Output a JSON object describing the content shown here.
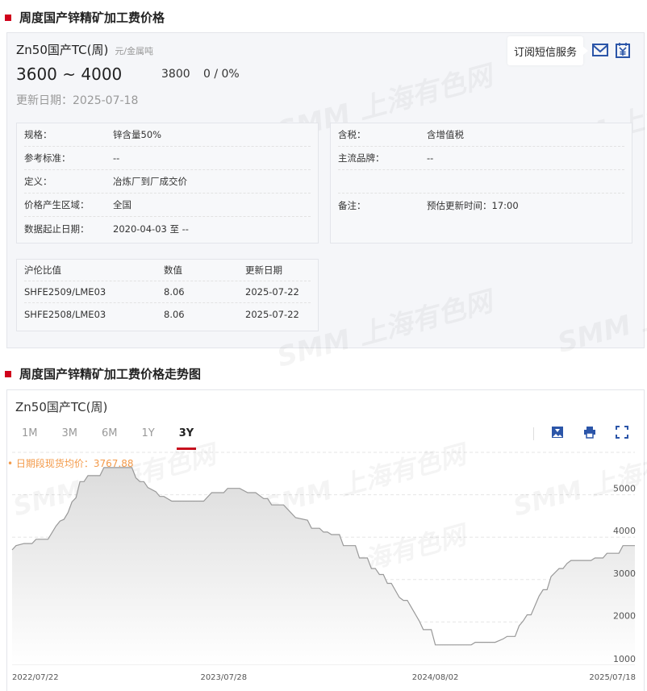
{
  "section1": {
    "title": "周度国产锌精矿加工费价格"
  },
  "product": {
    "name": "Zn50国产TC(周)",
    "unit": "元/金属吨",
    "range": "3600 ~ 4000",
    "average": "3800",
    "change": "0 / 0%",
    "update_date": "更新日期：2025-07-18",
    "subscribe_label": "订阅短信服务",
    "icons": [
      "mail-icon",
      "calendar-yuan-icon"
    ],
    "accent": "#2b55a8"
  },
  "specs_left": [
    {
      "k": "规格：",
      "v": "锌含量50%"
    },
    {
      "k": "参考标准：",
      "v": "--"
    },
    {
      "k": "定义：",
      "v": "冶炼厂到厂成交价"
    },
    {
      "k": "价格产生区域：",
      "v": "全国"
    },
    {
      "k": "数据起止日期：",
      "v": "2020-04-03 至 --"
    }
  ],
  "specs_right": [
    {
      "k": "含税：",
      "v": "含增值税"
    },
    {
      "k": "主流品牌：",
      "v": "--"
    },
    {
      "k": "备注：",
      "v": "预估更新时间：17:00"
    }
  ],
  "ratio_table": {
    "headers": [
      "沪伦比值",
      "数值",
      "更新日期"
    ],
    "rows": [
      [
        "SHFE2509/LME03",
        "8.06",
        "2025-07-22"
      ],
      [
        "SHFE2508/LME03",
        "8.06",
        "2025-07-22"
      ]
    ]
  },
  "section2": {
    "title": "周度国产锌精矿加工费价格走势图"
  },
  "chart_panel": {
    "title": "Zn50国产TC(周)",
    "tabs": [
      "1M",
      "3M",
      "6M",
      "1Y",
      "3Y"
    ],
    "active_tab": "3Y",
    "toolbar_icons": [
      "download-image-icon",
      "print-icon",
      "fullscreen-icon"
    ],
    "avg_label": "• 日期段现货均价：3767.88",
    "watermark": "SMM 上海有色网"
  },
  "chart_data": {
    "type": "area",
    "x_ticks": [
      "2022/07/22",
      "2023/07/28",
      "2024/08/02",
      "2025/07/18"
    ],
    "y_ticks": [
      1000,
      2000,
      3000,
      4000,
      5000
    ],
    "ylim": [
      1000,
      6000
    ],
    "xlim": [
      "2022-07-22",
      "2025-07-18"
    ],
    "grid": "horizontal dashed",
    "line_color": "#999999",
    "points": [
      [
        "2022-07-22",
        3700
      ],
      [
        "2022-07-29",
        3800
      ],
      [
        "2022-08-12",
        3850
      ],
      [
        "2022-08-26",
        3850
      ],
      [
        "2022-09-02",
        3950
      ],
      [
        "2022-09-23",
        3950
      ],
      [
        "2022-10-07",
        4260
      ],
      [
        "2022-10-14",
        4380
      ],
      [
        "2022-10-21",
        4420
      ],
      [
        "2022-10-28",
        4580
      ],
      [
        "2022-11-04",
        4830
      ],
      [
        "2022-11-11",
        4930
      ],
      [
        "2022-11-18",
        5310
      ],
      [
        "2022-11-25",
        5310
      ],
      [
        "2022-12-02",
        5450
      ],
      [
        "2022-12-23",
        5450
      ],
      [
        "2022-12-30",
        5640
      ],
      [
        "2023-02-17",
        5640
      ],
      [
        "2023-02-24",
        5400
      ],
      [
        "2023-03-03",
        5310
      ],
      [
        "2023-03-10",
        5310
      ],
      [
        "2023-03-17",
        5170
      ],
      [
        "2023-03-31",
        5070
      ],
      [
        "2023-04-07",
        4960
      ],
      [
        "2023-04-14",
        4960
      ],
      [
        "2023-04-28",
        4850
      ],
      [
        "2023-06-23",
        4850
      ],
      [
        "2023-07-07",
        5050
      ],
      [
        "2023-07-28",
        5050
      ],
      [
        "2023-08-04",
        5150
      ],
      [
        "2023-08-25",
        5150
      ],
      [
        "2023-09-08",
        5050
      ],
      [
        "2023-09-22",
        5050
      ],
      [
        "2023-10-06",
        4910
      ],
      [
        "2023-10-13",
        4910
      ],
      [
        "2023-10-20",
        4760
      ],
      [
        "2023-11-10",
        4760
      ],
      [
        "2023-12-01",
        4460
      ],
      [
        "2023-12-22",
        4400
      ],
      [
        "2023-12-29",
        4210
      ],
      [
        "2024-01-12",
        4210
      ],
      [
        "2024-01-19",
        4120
      ],
      [
        "2024-01-26",
        4120
      ],
      [
        "2024-02-02",
        4060
      ],
      [
        "2024-02-16",
        4060
      ],
      [
        "2024-02-23",
        3800
      ],
      [
        "2024-03-15",
        3800
      ],
      [
        "2024-03-22",
        3510
      ],
      [
        "2024-04-05",
        3510
      ],
      [
        "2024-04-12",
        3260
      ],
      [
        "2024-04-19",
        3260
      ],
      [
        "2024-04-26",
        3120
      ],
      [
        "2024-05-03",
        3120
      ],
      [
        "2024-05-10",
        2910
      ],
      [
        "2024-05-17",
        2910
      ],
      [
        "2024-05-31",
        2580
      ],
      [
        "2024-06-07",
        2510
      ],
      [
        "2024-06-14",
        2510
      ],
      [
        "2024-07-05",
        2020
      ],
      [
        "2024-07-12",
        1820
      ],
      [
        "2024-07-26",
        1820
      ],
      [
        "2024-08-02",
        1460
      ],
      [
        "2024-10-04",
        1460
      ],
      [
        "2024-10-11",
        1520
      ],
      [
        "2024-11-15",
        1520
      ],
      [
        "2024-11-29",
        1600
      ],
      [
        "2024-12-06",
        1660
      ],
      [
        "2024-12-20",
        1660
      ],
      [
        "2024-12-27",
        1910
      ],
      [
        "2025-01-03",
        2020
      ],
      [
        "2025-01-10",
        2170
      ],
      [
        "2025-01-17",
        2170
      ],
      [
        "2025-01-31",
        2610
      ],
      [
        "2025-02-07",
        2760
      ],
      [
        "2025-02-14",
        2760
      ],
      [
        "2025-02-21",
        3070
      ],
      [
        "2025-03-07",
        3260
      ],
      [
        "2025-03-14",
        3260
      ],
      [
        "2025-03-21",
        3380
      ],
      [
        "2025-03-28",
        3450
      ],
      [
        "2025-05-02",
        3450
      ],
      [
        "2025-05-09",
        3510
      ],
      [
        "2025-05-23",
        3510
      ],
      [
        "2025-05-30",
        3620
      ],
      [
        "2025-06-20",
        3620
      ],
      [
        "2025-06-27",
        3800
      ],
      [
        "2025-07-18",
        3800
      ]
    ]
  }
}
